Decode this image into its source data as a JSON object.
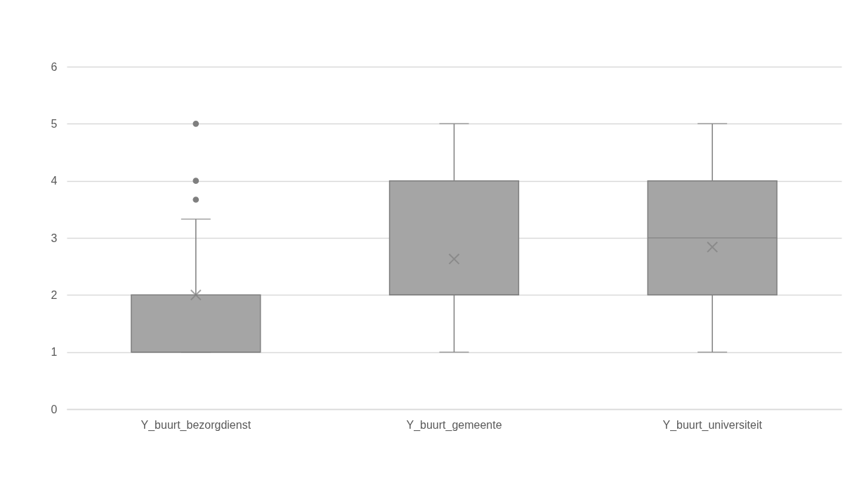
{
  "chart_data": {
    "type": "box",
    "categories": [
      "Y_buurt_bezorgdienst",
      "Y_buurt_gemeente",
      "Y_buurt_universiteit"
    ],
    "series": [
      {
        "color": "#a5a5a5",
        "boxes": [
          {
            "low": 1,
            "q1": 1,
            "median": 1,
            "q3": 2,
            "high": 3.33,
            "mean": 2.0,
            "outliers": [
              3.67,
              4,
              5
            ]
          },
          {
            "low": 1,
            "q1": 2,
            "median": 2,
            "q3": 4,
            "high": 5,
            "mean": 2.63
          },
          {
            "low": 1,
            "q1": 2,
            "median": 3,
            "q3": 4,
            "high": 5,
            "mean": 2.84
          }
        ]
      }
    ],
    "ylim": [
      0,
      6
    ],
    "yticks": [
      0,
      1,
      2,
      3,
      4,
      5,
      6
    ],
    "grid": "y",
    "marker": "cross"
  }
}
